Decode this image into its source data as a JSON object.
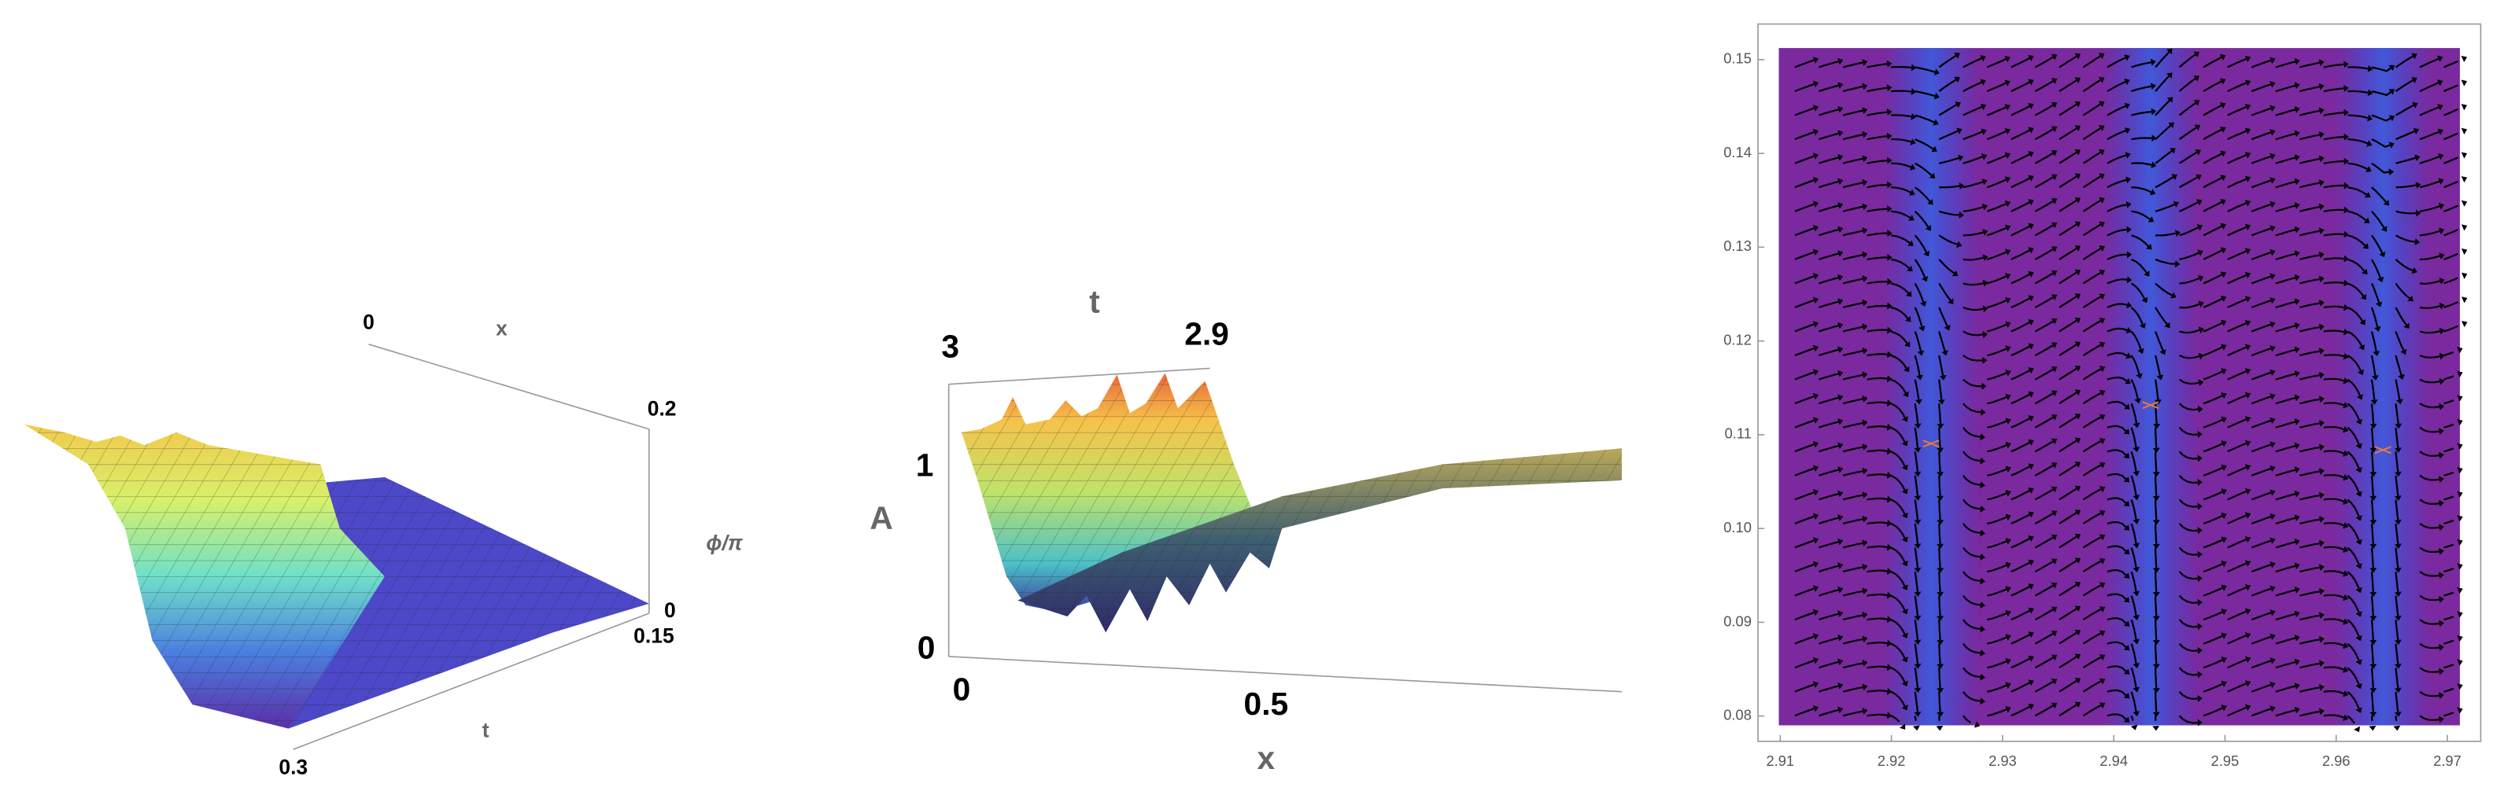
{
  "chart_data": [
    {
      "type": "surface",
      "x_label": "x",
      "y_label": "t",
      "z_label": "ϕ/π",
      "xticks": [
        0,
        0.2
      ],
      "yticks": [
        0.15,
        0.3
      ],
      "zticks": [
        0
      ]
    },
    {
      "type": "surface",
      "x_label": "x",
      "y_label": "t",
      "z_label": "A",
      "xticks": [
        0,
        0.5
      ],
      "yticks": [
        3,
        2.9
      ],
      "zticks": [
        0,
        1
      ]
    },
    {
      "type": "streamplot",
      "xlim": [
        2.908,
        2.973
      ],
      "ylim": [
        0.0773,
        0.1538
      ],
      "xticks": [
        2.91,
        2.92,
        2.93,
        2.94,
        2.95,
        2.96,
        2.97
      ],
      "yticks": [
        0.08,
        0.09,
        {
          "value": 0.1,
          "label": "0.10"
        },
        0.11,
        0.12,
        0.13,
        0.14,
        0.15
      ],
      "frame": true
    }
  ]
}
